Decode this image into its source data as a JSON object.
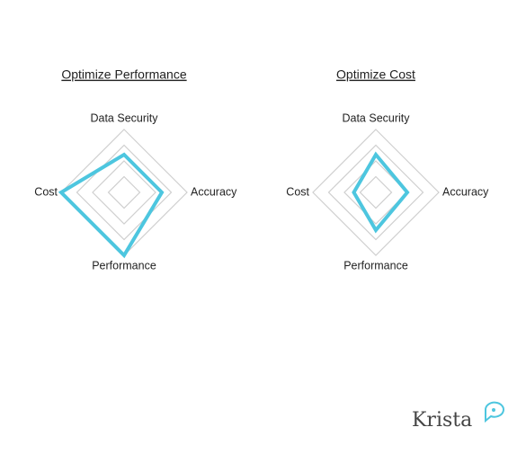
{
  "chart_data": [
    {
      "type": "radar",
      "title": "Optimize Performance",
      "categories": [
        "Data Security",
        "Accuracy",
        "Performance",
        "Cost"
      ],
      "values": [
        60,
        60,
        100,
        100
      ],
      "color": "#4dc6df",
      "rlim": [
        0,
        100
      ],
      "rticks": [
        25,
        50,
        75,
        100
      ],
      "grid": true
    },
    {
      "type": "radar",
      "title": "Optimize Cost",
      "categories": [
        "Data Security",
        "Accuracy",
        "Performance",
        "Cost"
      ],
      "values": [
        60,
        50,
        60,
        35
      ],
      "color": "#4dc6df",
      "rlim": [
        0,
        100
      ],
      "rticks": [
        25,
        50,
        75,
        100
      ],
      "grid": true
    }
  ],
  "brand": "Krista"
}
